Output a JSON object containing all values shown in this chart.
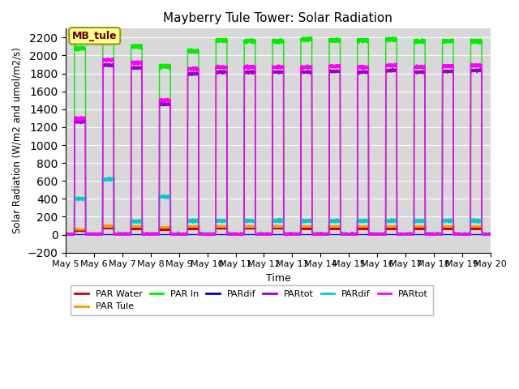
{
  "title": "Mayberry Tule Tower: Solar Radiation",
  "xlabel": "Time",
  "ylabel": "Solar Radiation (W/m2 and umol/m2/s)",
  "ylim": [
    -200,
    2300
  ],
  "yticks": [
    -200,
    0,
    200,
    400,
    600,
    800,
    1000,
    1200,
    1400,
    1600,
    1800,
    2000,
    2200
  ],
  "xtick_labels": [
    "May 5",
    "May 6",
    "May 7",
    "May 8",
    "May 9",
    "May 10",
    "May 11",
    "May 12",
    "May 13",
    "May 14",
    "May 15",
    "May 16",
    "May 17",
    "May 18",
    "May 19",
    "May 20"
  ],
  "bg_color": "#d8d8d8",
  "legend_box_color": "#ffff99",
  "legend_box_edge": "#999900",
  "legend_label_color": "#660000",
  "series": [
    {
      "label": "PAR Water",
      "color": "#cc0000"
    },
    {
      "label": "PAR Tule",
      "color": "#ff9900"
    },
    {
      "label": "PAR In",
      "color": "#00ee00"
    },
    {
      "label": "PARdif",
      "color": "#0000cc"
    },
    {
      "label": "PARtot",
      "color": "#9900cc"
    },
    {
      "label": "PARdif",
      "color": "#00cccc"
    },
    {
      "label": "PARtot",
      "color": "#ff00ff"
    }
  ],
  "num_days": 15
}
